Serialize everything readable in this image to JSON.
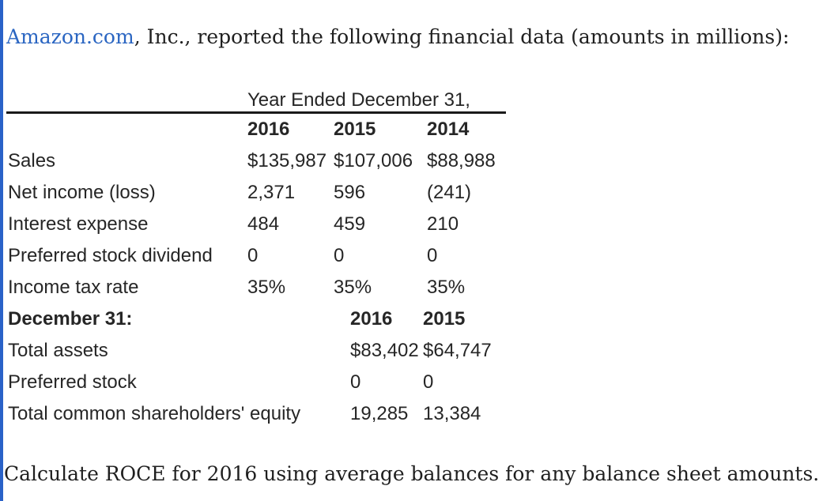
{
  "intro": {
    "link_text": "Amazon.com",
    "rest_text": ", Inc., reported the following financial data (amounts in millions):"
  },
  "table": {
    "span_header": "Year Ended December 31,",
    "section1": {
      "years": [
        "2016",
        "2015",
        "2014"
      ],
      "rows": [
        {
          "label": "Sales",
          "values": [
            "$135,987",
            "$107,006",
            "$88,988"
          ]
        },
        {
          "label": "Net income (loss)",
          "values": [
            "2,371",
            "596",
            "(241)"
          ]
        },
        {
          "label": "Interest expense",
          "values": [
            "484",
            "459",
            "210"
          ]
        },
        {
          "label": "Preferred stock dividend",
          "values": [
            "0",
            "0",
            "0"
          ]
        },
        {
          "label": "Income tax rate",
          "values": [
            "35%",
            "35%",
            "35%"
          ]
        }
      ]
    },
    "section2": {
      "header": "December 31:",
      "years": [
        "2016",
        "2015"
      ],
      "rows": [
        {
          "label": "Total assets",
          "values": [
            "$83,402",
            "$64,747"
          ]
        },
        {
          "label": "Preferred stock",
          "values": [
            "0",
            "0"
          ]
        },
        {
          "label": "Total common shareholders' equity",
          "values": [
            "19,285",
            "13,384"
          ]
        }
      ]
    }
  },
  "footer": {
    "question": "Calculate ROCE for 2016 using average balances for any balance sheet amounts."
  },
  "colors": {
    "link_blue": "#2b66c2",
    "left_bar_blue": "#2a62c8",
    "rule_black": "#1a1a1a"
  }
}
